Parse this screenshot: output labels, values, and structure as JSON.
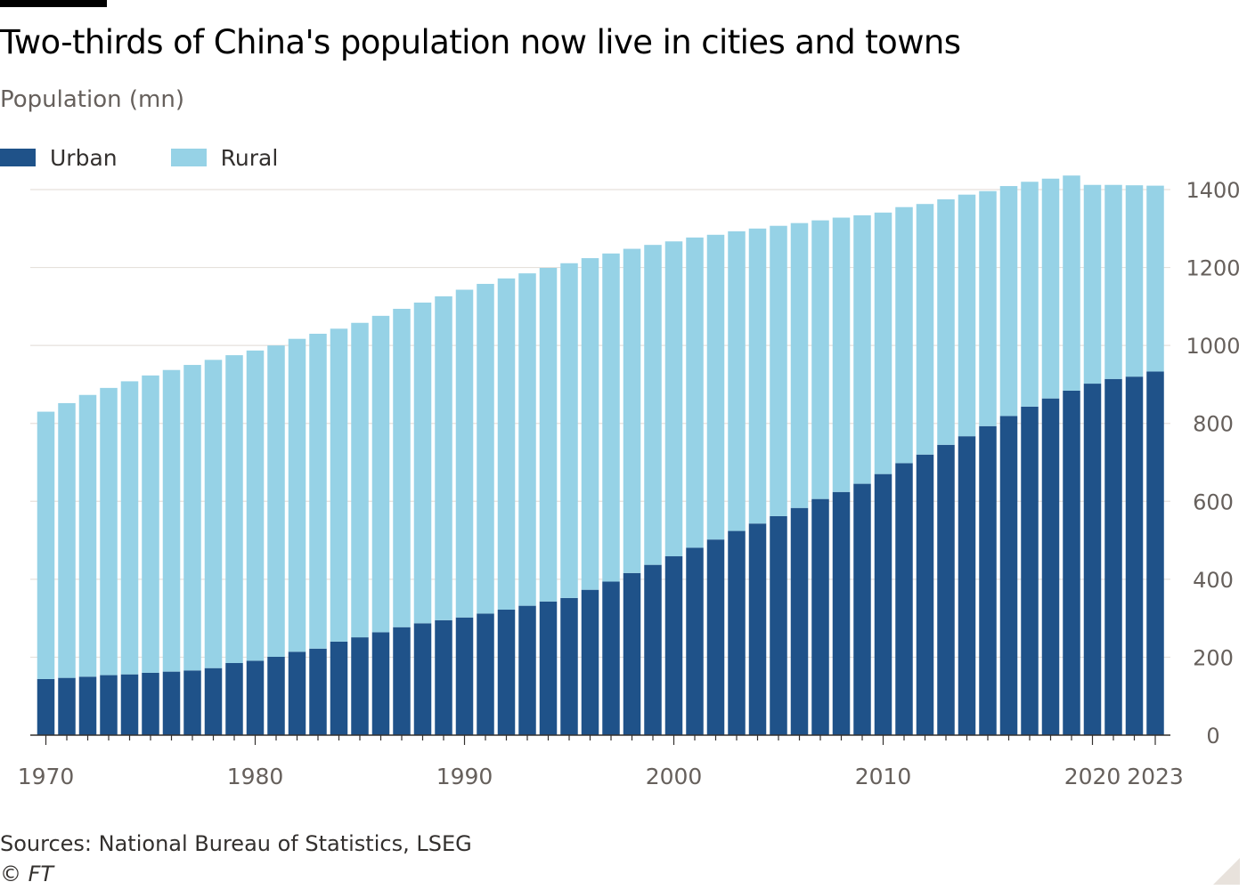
{
  "header": {
    "title": "Two-thirds of China's population now live in cities and towns",
    "subtitle": "Population (mn)"
  },
  "legend": {
    "urban_label": "Urban",
    "rural_label": "Rural"
  },
  "colors": {
    "urban": "#1f5289",
    "rural": "#96d2e6",
    "gridline": "#e6e1dc",
    "axis": "#33302e",
    "tick_text": "#66605c"
  },
  "footer": {
    "source": "Sources: National Bureau of Statistics, LSEG",
    "copyright": "© FT"
  },
  "chart_data": {
    "type": "bar",
    "stacked": true,
    "title": "Two-thirds of China's population now live in cities and towns",
    "ylabel": "Population (mn)",
    "xlabel": "",
    "ylim": [
      0,
      1400
    ],
    "yticks": [
      0,
      200,
      400,
      600,
      800,
      1000,
      1200,
      1400
    ],
    "y_axis_side": "right",
    "grid": true,
    "legend_position": "top-left",
    "x_tick_labels": [
      "1970",
      "1980",
      "1990",
      "2000",
      "2010",
      "2020",
      "2023"
    ],
    "categories": [
      1970,
      1971,
      1972,
      1973,
      1974,
      1975,
      1976,
      1977,
      1978,
      1979,
      1980,
      1981,
      1982,
      1983,
      1984,
      1985,
      1986,
      1987,
      1988,
      1989,
      1990,
      1991,
      1992,
      1993,
      1994,
      1995,
      1996,
      1997,
      1998,
      1999,
      2000,
      2001,
      2002,
      2003,
      2004,
      2005,
      2006,
      2007,
      2008,
      2009,
      2010,
      2011,
      2012,
      2013,
      2014,
      2015,
      2016,
      2017,
      2018,
      2019,
      2020,
      2021,
      2022,
      2023
    ],
    "series": [
      {
        "name": "Urban",
        "values": [
          144,
          147,
          150,
          154,
          156,
          160,
          163,
          166,
          172,
          185,
          191,
          201,
          214,
          222,
          240,
          251,
          264,
          277,
          287,
          295,
          302,
          312,
          322,
          332,
          343,
          352,
          373,
          394,
          416,
          437,
          459,
          481,
          502,
          524,
          543,
          562,
          583,
          606,
          624,
          645,
          670,
          698,
          720,
          745,
          767,
          793,
          819,
          843,
          864,
          884,
          902,
          914,
          920,
          933
        ]
      },
      {
        "name": "Rural",
        "values": [
          686,
          705,
          723,
          737,
          752,
          763,
          774,
          784,
          791,
          790,
          796,
          799,
          803,
          808,
          803,
          807,
          812,
          817,
          823,
          831,
          841,
          846,
          850,
          853,
          856,
          859,
          851,
          842,
          832,
          821,
          808,
          796,
          782,
          769,
          757,
          745,
          731,
          715,
          704,
          689,
          671,
          657,
          643,
          630,
          620,
          603,
          590,
          577,
          564,
          552,
          510,
          498,
          491,
          477
        ]
      }
    ]
  }
}
